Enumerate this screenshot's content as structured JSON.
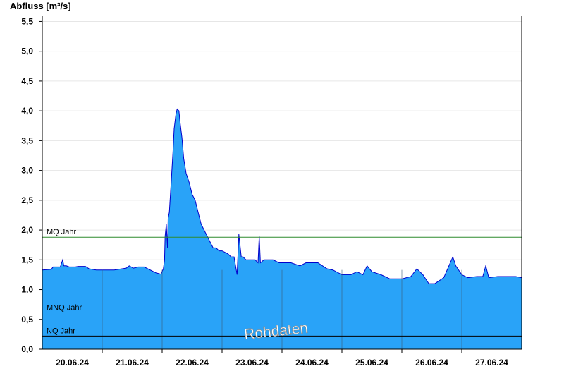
{
  "chart_data": {
    "type": "area",
    "title": "",
    "ylabel": "Abfluss [m³/s]",
    "xlabel": "",
    "ylim": [
      0,
      5.6
    ],
    "y_ticks": [
      "0,0",
      "0,5",
      "1,0",
      "1,5",
      "2,0",
      "2,5",
      "3,0",
      "3,5",
      "4,0",
      "4,5",
      "5,0",
      "5,5"
    ],
    "y_tick_values": [
      0,
      0.5,
      1,
      1.5,
      2,
      2.5,
      3,
      3.5,
      4,
      4.5,
      5,
      5.5
    ],
    "x_day_labels": [
      "20.06.24",
      "21.06.24",
      "22.06.24",
      "23.06.24",
      "24.06.24",
      "25.06.24",
      "26.06.24",
      "27.06.24"
    ],
    "x_range_days": [
      0,
      8
    ],
    "grid": "horizontal",
    "reference_lines": [
      {
        "name": "MQ Jahr",
        "value": 1.88,
        "color": "#2e8b2e"
      },
      {
        "name": "MNQ Jahr",
        "value": 0.61,
        "color": "#000000"
      },
      {
        "name": "NQ Jahr",
        "value": 0.22,
        "color": "#000000"
      }
    ],
    "annotation": "Rohdaten",
    "colors": {
      "fill": "#29a3f8",
      "line": "#0000cc"
    },
    "series": [
      {
        "values": [
          [
            0.0,
            1.33
          ],
          [
            0.15,
            1.34
          ],
          [
            0.18,
            1.38
          ],
          [
            0.3,
            1.38
          ],
          [
            0.34,
            1.5
          ],
          [
            0.36,
            1.4
          ],
          [
            0.4,
            1.4
          ],
          [
            0.45,
            1.38
          ],
          [
            0.55,
            1.38
          ],
          [
            0.6,
            1.39
          ],
          [
            0.72,
            1.39
          ],
          [
            0.78,
            1.35
          ],
          [
            0.9,
            1.33
          ],
          [
            1.2,
            1.33
          ],
          [
            1.4,
            1.36
          ],
          [
            1.45,
            1.4
          ],
          [
            1.52,
            1.36
          ],
          [
            1.6,
            1.38
          ],
          [
            1.7,
            1.38
          ],
          [
            1.8,
            1.33
          ],
          [
            1.9,
            1.28
          ],
          [
            1.98,
            1.26
          ],
          [
            2.02,
            1.35
          ],
          [
            2.04,
            1.5
          ],
          [
            2.05,
            1.9
          ],
          [
            2.07,
            2.1
          ],
          [
            2.09,
            1.7
          ],
          [
            2.1,
            2.2
          ],
          [
            2.12,
            2.3
          ],
          [
            2.15,
            2.8
          ],
          [
            2.18,
            3.3
          ],
          [
            2.2,
            3.7
          ],
          [
            2.23,
            3.95
          ],
          [
            2.25,
            4.03
          ],
          [
            2.28,
            4.0
          ],
          [
            2.3,
            3.8
          ],
          [
            2.33,
            3.55
          ],
          [
            2.36,
            3.2
          ],
          [
            2.4,
            2.95
          ],
          [
            2.45,
            2.8
          ],
          [
            2.5,
            2.6
          ],
          [
            2.55,
            2.5
          ],
          [
            2.6,
            2.3
          ],
          [
            2.65,
            2.1
          ],
          [
            2.7,
            2.0
          ],
          [
            2.75,
            1.9
          ],
          [
            2.8,
            1.8
          ],
          [
            2.85,
            1.7
          ],
          [
            2.9,
            1.7
          ],
          [
            2.95,
            1.65
          ],
          [
            3.0,
            1.65
          ],
          [
            3.1,
            1.6
          ],
          [
            3.15,
            1.55
          ],
          [
            3.2,
            1.55
          ],
          [
            3.25,
            1.25
          ],
          [
            3.28,
            1.93
          ],
          [
            3.32,
            1.55
          ],
          [
            3.35,
            1.55
          ],
          [
            3.4,
            1.5
          ],
          [
            3.5,
            1.5
          ],
          [
            3.55,
            1.5
          ],
          [
            3.6,
            1.45
          ],
          [
            3.62,
            1.9
          ],
          [
            3.64,
            1.45
          ],
          [
            3.7,
            1.5
          ],
          [
            3.85,
            1.5
          ],
          [
            3.95,
            1.45
          ],
          [
            4.15,
            1.45
          ],
          [
            4.3,
            1.4
          ],
          [
            4.4,
            1.45
          ],
          [
            4.6,
            1.45
          ],
          [
            4.75,
            1.35
          ],
          [
            4.85,
            1.33
          ],
          [
            5.0,
            1.25
          ],
          [
            5.15,
            1.25
          ],
          [
            5.25,
            1.3
          ],
          [
            5.35,
            1.25
          ],
          [
            5.42,
            1.4
          ],
          [
            5.5,
            1.3
          ],
          [
            5.65,
            1.25
          ],
          [
            5.8,
            1.18
          ],
          [
            6.0,
            1.18
          ],
          [
            6.15,
            1.22
          ],
          [
            6.25,
            1.35
          ],
          [
            6.3,
            1.3
          ],
          [
            6.35,
            1.25
          ],
          [
            6.45,
            1.1
          ],
          [
            6.55,
            1.1
          ],
          [
            6.7,
            1.2
          ],
          [
            6.85,
            1.55
          ],
          [
            6.9,
            1.4
          ],
          [
            7.0,
            1.25
          ],
          [
            7.1,
            1.2
          ],
          [
            7.25,
            1.22
          ],
          [
            7.35,
            1.22
          ],
          [
            7.4,
            1.4
          ],
          [
            7.45,
            1.2
          ],
          [
            7.6,
            1.22
          ],
          [
            7.9,
            1.22
          ],
          [
            8.0,
            1.2
          ]
        ]
      }
    ]
  }
}
